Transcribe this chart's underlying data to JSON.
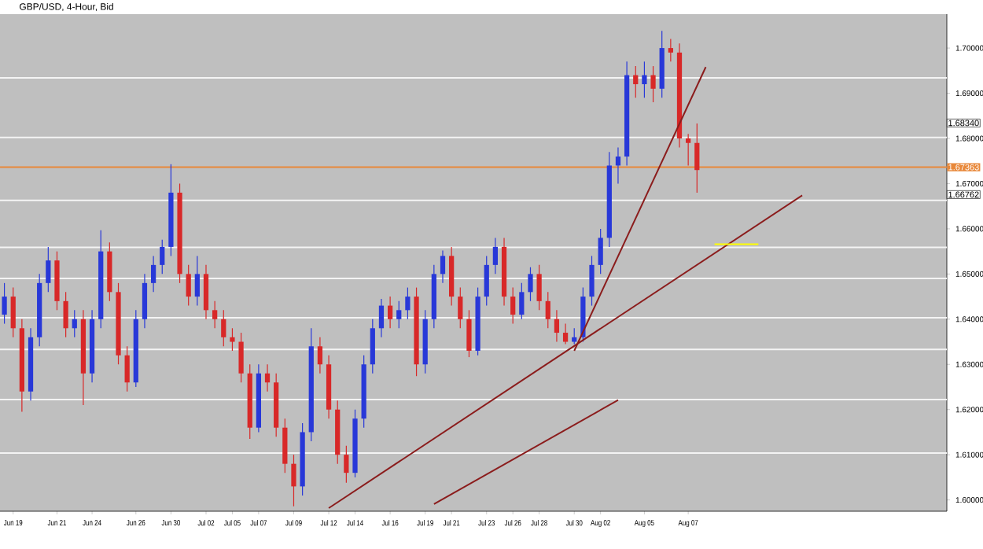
{
  "chart_data": {
    "type": "candlestick",
    "title": "GBP/USD, 4-Hour, Bid",
    "categories": [
      null,
      "Jun 19",
      null,
      null,
      null,
      null,
      "Jun 21",
      null,
      null,
      null,
      "Jun 24",
      null,
      null,
      null,
      null,
      "Jun 26",
      null,
      null,
      null,
      "Jun 30",
      null,
      null,
      null,
      "Jul 02",
      null,
      null,
      "Jul 05",
      null,
      null,
      "Jul 07",
      null,
      null,
      null,
      "Jul 09",
      null,
      null,
      null,
      "Jul 12",
      null,
      null,
      "Jul 14",
      null,
      null,
      null,
      "Jul 16",
      null,
      null,
      null,
      "Jul 19",
      null,
      null,
      "Jul 21",
      null,
      null,
      null,
      "Jul 23",
      null,
      null,
      "Jul 26",
      null,
      null,
      "Jul 28",
      null,
      null,
      null,
      "Jul 30",
      null,
      null,
      "Aug 02",
      null,
      null,
      null,
      null,
      "Aug 05",
      null,
      null,
      null,
      null,
      "Aug 07",
      null,
      null,
      null,
      null,
      null,
      null,
      null,
      null,
      null,
      null,
      null,
      null,
      null,
      null,
      null,
      null,
      null,
      null,
      null,
      null,
      null,
      null,
      null,
      null,
      null,
      null,
      null,
      null,
      null
    ],
    "ylim": [
      1.5975,
      1.7075
    ],
    "yticks": [
      {
        "value": 1.6,
        "label": "1.60000"
      },
      {
        "value": 1.61,
        "label": "1.61000"
      },
      {
        "value": 1.62,
        "label": "1.62000"
      },
      {
        "value": 1.63,
        "label": "1.63000"
      },
      {
        "value": 1.64,
        "label": "1.64000"
      },
      {
        "value": 1.65,
        "label": "1.65000"
      },
      {
        "value": 1.66,
        "label": "1.66000"
      },
      {
        "value": 1.67,
        "label": "1.67000"
      },
      {
        "value": 1.68,
        "label": "1.68000"
      },
      {
        "value": 1.69,
        "label": "1.69000"
      },
      {
        "value": 1.7,
        "label": "1.70000"
      }
    ],
    "series": [
      {
        "ohlc": [
          [
            1.641,
            1.648,
            1.639,
            1.645
          ],
          [
            1.645,
            1.647,
            1.636,
            1.638
          ],
          [
            1.638,
            1.64,
            1.6195,
            1.624
          ],
          [
            1.624,
            1.638,
            1.622,
            1.636
          ],
          [
            1.636,
            1.65,
            1.634,
            1.648
          ],
          [
            1.648,
            1.656,
            1.646,
            1.653
          ],
          [
            1.653,
            1.655,
            1.642,
            1.644
          ],
          [
            1.644,
            1.646,
            1.636,
            1.638
          ],
          [
            1.638,
            1.642,
            1.636,
            1.64
          ],
          [
            1.64,
            1.642,
            1.621,
            1.628
          ],
          [
            1.628,
            1.642,
            1.626,
            1.64
          ],
          [
            1.64,
            1.6597,
            1.638,
            1.655
          ],
          [
            1.655,
            1.657,
            1.644,
            1.646
          ],
          [
            1.646,
            1.648,
            1.63,
            1.632
          ],
          [
            1.632,
            1.634,
            1.624,
            1.626
          ],
          [
            1.626,
            1.642,
            1.625,
            1.64
          ],
          [
            1.64,
            1.65,
            1.638,
            1.648
          ],
          [
            1.648,
            1.654,
            1.646,
            1.652
          ],
          [
            1.652,
            1.6576,
            1.65,
            1.656
          ],
          [
            1.656,
            1.6743,
            1.654,
            1.668
          ],
          [
            1.668,
            1.67,
            1.648,
            1.65
          ],
          [
            1.65,
            1.652,
            1.643,
            1.645
          ],
          [
            1.645,
            1.654,
            1.643,
            1.65
          ],
          [
            1.65,
            1.652,
            1.64,
            1.642
          ],
          [
            1.642,
            1.644,
            1.638,
            1.64
          ],
          [
            1.64,
            1.642,
            1.634,
            1.636
          ],
          [
            1.636,
            1.638,
            1.633,
            1.635
          ],
          [
            1.635,
            1.637,
            1.626,
            1.628
          ],
          [
            1.628,
            1.63,
            1.6135,
            1.616
          ],
          [
            1.616,
            1.63,
            1.615,
            1.628
          ],
          [
            1.628,
            1.63,
            1.624,
            1.626
          ],
          [
            1.626,
            1.628,
            1.614,
            1.616
          ],
          [
            1.616,
            1.618,
            1.606,
            1.608
          ],
          [
            1.608,
            1.61,
            1.5986,
            1.603
          ],
          [
            1.603,
            1.617,
            1.601,
            1.615
          ],
          [
            1.615,
            1.638,
            1.613,
            1.634
          ],
          [
            1.634,
            1.636,
            1.628,
            1.63
          ],
          [
            1.63,
            1.632,
            1.618,
            1.62
          ],
          [
            1.62,
            1.622,
            1.608,
            1.61
          ],
          [
            1.61,
            1.612,
            1.6038,
            1.606
          ],
          [
            1.606,
            1.62,
            1.605,
            1.618
          ],
          [
            1.618,
            1.632,
            1.616,
            1.63
          ],
          [
            1.63,
            1.64,
            1.628,
            1.638
          ],
          [
            1.638,
            1.6445,
            1.636,
            1.643
          ],
          [
            1.643,
            1.645,
            1.638,
            1.64
          ],
          [
            1.64,
            1.644,
            1.638,
            1.642
          ],
          [
            1.642,
            1.647,
            1.64,
            1.645
          ],
          [
            1.645,
            1.647,
            1.6274,
            1.63
          ],
          [
            1.63,
            1.642,
            1.628,
            1.64
          ],
          [
            1.64,
            1.652,
            1.638,
            1.65
          ],
          [
            1.65,
            1.6552,
            1.648,
            1.654
          ],
          [
            1.654,
            1.656,
            1.643,
            1.645
          ],
          [
            1.645,
            1.647,
            1.638,
            1.64
          ],
          [
            1.64,
            1.642,
            1.6316,
            1.633
          ],
          [
            1.633,
            1.647,
            1.632,
            1.645
          ],
          [
            1.645,
            1.654,
            1.643,
            1.652
          ],
          [
            1.652,
            1.658,
            1.65,
            1.656
          ],
          [
            1.656,
            1.658,
            1.643,
            1.645
          ],
          [
            1.645,
            1.647,
            1.639,
            1.641
          ],
          [
            1.641,
            1.648,
            1.64,
            1.646
          ],
          [
            1.646,
            1.6515,
            1.644,
            1.65
          ],
          [
            1.65,
            1.652,
            1.642,
            1.644
          ],
          [
            1.644,
            1.646,
            1.638,
            1.64
          ],
          [
            1.64,
            1.642,
            1.635,
            1.637
          ],
          [
            1.637,
            1.639,
            1.6345,
            1.635
          ],
          [
            1.635,
            1.638,
            1.6345,
            1.636
          ],
          [
            1.636,
            1.647,
            1.635,
            1.645
          ],
          [
            1.645,
            1.654,
            1.643,
            1.652
          ],
          [
            1.652,
            1.66,
            1.65,
            1.658
          ],
          [
            1.658,
            1.677,
            1.656,
            1.674
          ],
          [
            1.674,
            1.678,
            1.67,
            1.676
          ],
          [
            1.676,
            1.697,
            1.674,
            1.694
          ],
          [
            1.694,
            1.696,
            1.689,
            1.692
          ],
          [
            1.692,
            1.697,
            1.689,
            1.694
          ],
          [
            1.694,
            1.696,
            1.688,
            1.691
          ],
          [
            1.691,
            1.7038,
            1.689,
            1.7
          ],
          [
            1.7,
            1.702,
            1.697,
            1.699
          ],
          [
            1.699,
            1.701,
            1.678,
            1.68
          ],
          [
            1.68,
            1.681,
            1.674,
            1.679
          ],
          [
            1.679,
            1.6833,
            1.668,
            1.673
          ],
          null,
          null,
          null,
          null,
          null,
          null,
          null,
          null,
          null,
          null,
          null,
          null,
          null,
          null,
          null,
          null,
          null,
          null,
          null,
          null,
          null,
          null,
          null,
          null,
          null,
          null,
          null,
          null
        ],
        "colors": [
          "#2838d8",
          "#d82828",
          "#d82828",
          "#2838d8",
          "#2838d8",
          "#2838d8",
          "#d82828",
          "#d82828",
          "#2838d8",
          "#d82828",
          "#2838d8",
          "#2838d8",
          "#d82828",
          "#d82828",
          "#d82828",
          "#2838d8",
          "#2838d8",
          "#2838d8",
          "#2838d8",
          "#2838d8",
          "#d82828",
          "#d82828",
          "#2838d8",
          "#d82828",
          "#d82828",
          "#d82828",
          "#d82828",
          "#d82828",
          "#d82828",
          "#2838d8",
          "#d82828",
          "#d82828",
          "#d82828",
          "#d82828",
          "#2838d8",
          "#2838d8",
          "#d82828",
          "#d82828",
          "#d82828",
          "#d82828",
          "#2838d8",
          "#2838d8",
          "#2838d8",
          "#2838d8",
          "#d82828",
          "#2838d8",
          "#2838d8",
          "#d82828",
          "#2838d8",
          "#2838d8",
          "#2838d8",
          "#d82828",
          "#d82828",
          "#d82828",
          "#2838d8",
          "#2838d8",
          "#2838d8",
          "#d82828",
          "#d82828",
          "#2838d8",
          "#2838d8",
          "#d82828",
          "#d82828",
          "#d82828",
          "#d82828",
          "#2838d8",
          "#2838d8",
          "#2838d8",
          "#2838d8",
          "#2838d8",
          "#2838d8",
          "#2838d8",
          "#d82828",
          "#2838d8",
          "#d82828",
          "#2838d8",
          "#d82828",
          "#d82828",
          "#d82828",
          "#d82828",
          null,
          null,
          null,
          null,
          null,
          null,
          null,
          null,
          null,
          null,
          null,
          null,
          null,
          null,
          null,
          null,
          null,
          null,
          null,
          null,
          null,
          null,
          null,
          null,
          null,
          null,
          null,
          null
        ]
      },
      {
        "type": "line",
        "color": "#8b1c1c",
        "values": [
          null,
          null,
          null,
          null,
          null,
          null,
          null,
          null,
          null,
          null,
          null,
          null,
          null,
          null,
          null,
          null,
          null,
          null,
          null,
          null,
          null,
          null,
          null,
          null,
          null,
          null,
          null,
          null,
          null,
          null,
          null,
          null,
          null,
          null,
          null,
          null,
          null,
          null,
          null,
          null,
          null,
          null,
          null,
          null,
          null,
          null,
          null,
          null,
          null,
          null,
          null,
          null,
          null,
          null,
          null,
          null,
          null,
          null,
          null,
          null,
          null,
          null,
          null,
          null,
          null,
          1.633,
          null,
          null,
          null,
          null,
          null,
          null,
          null,
          null,
          null,
          null,
          null,
          null,
          null,
          null,
          1.6958,
          null,
          null,
          null,
          null,
          null,
          null,
          null,
          null,
          null,
          null,
          null,
          null,
          null,
          null,
          null,
          null,
          null,
          null,
          null,
          null,
          null,
          null,
          null,
          null,
          null,
          null,
          null
        ]
      },
      {
        "type": "line",
        "color": "#8b1c1c",
        "values": [
          null,
          null,
          null,
          null,
          null,
          null,
          null,
          null,
          null,
          null,
          null,
          null,
          null,
          null,
          null,
          null,
          null,
          null,
          null,
          null,
          null,
          null,
          null,
          null,
          null,
          null,
          null,
          null,
          null,
          null,
          null,
          null,
          null,
          null,
          null,
          null,
          null,
          1.5982,
          null,
          null,
          null,
          null,
          null,
          null,
          null,
          null,
          null,
          null,
          null,
          null,
          null,
          null,
          null,
          null,
          null,
          null,
          null,
          null,
          null,
          null,
          null,
          null,
          null,
          null,
          null,
          null,
          null,
          null,
          null,
          null,
          null,
          null,
          null,
          null,
          null,
          null,
          null,
          null,
          null,
          null,
          null,
          null,
          null,
          null,
          null,
          null,
          null,
          null,
          null,
          null,
          null,
          1.6674,
          null,
          null,
          null,
          null,
          null,
          null,
          null,
          null,
          null,
          null,
          null,
          null,
          null,
          null,
          null,
          null
        ]
      },
      {
        "type": "line",
        "color": "#8b1c1c",
        "values": [
          null,
          null,
          null,
          null,
          null,
          null,
          null,
          null,
          null,
          null,
          null,
          null,
          null,
          null,
          null,
          null,
          null,
          null,
          null,
          null,
          null,
          null,
          null,
          null,
          null,
          null,
          null,
          null,
          null,
          null,
          null,
          null,
          null,
          null,
          null,
          null,
          null,
          null,
          null,
          null,
          null,
          null,
          null,
          null,
          null,
          null,
          null,
          null,
          null,
          1.5991,
          null,
          null,
          null,
          null,
          null,
          null,
          null,
          null,
          null,
          null,
          null,
          null,
          null,
          null,
          null,
          null,
          null,
          null,
          null,
          null,
          1.6221,
          null,
          null,
          null,
          null,
          null,
          null,
          null,
          null,
          null,
          null,
          null,
          null,
          null,
          null,
          null,
          null,
          null,
          null,
          null,
          null,
          null,
          null,
          null,
          null,
          null,
          null,
          null,
          null,
          null,
          null,
          null,
          null,
          null,
          null,
          null,
          null,
          null
        ]
      },
      {
        "type": "line",
        "color": "#ffff00",
        "values": [
          null,
          null,
          null,
          null,
          null,
          null,
          null,
          null,
          null,
          null,
          null,
          null,
          null,
          null,
          null,
          null,
          null,
          null,
          null,
          null,
          null,
          null,
          null,
          null,
          null,
          null,
          null,
          null,
          null,
          null,
          null,
          null,
          null,
          null,
          null,
          null,
          null,
          null,
          null,
          null,
          null,
          null,
          null,
          null,
          null,
          null,
          null,
          null,
          null,
          null,
          null,
          null,
          null,
          null,
          null,
          null,
          null,
          null,
          null,
          null,
          null,
          null,
          null,
          null,
          null,
          null,
          null,
          null,
          null,
          null,
          null,
          null,
          null,
          null,
          null,
          null,
          null,
          null,
          null,
          null,
          null,
          1.6566,
          null,
          null,
          null,
          null,
          1.6566,
          null,
          null,
          null,
          null,
          null,
          null,
          null,
          null,
          null,
          null,
          null,
          null,
          null,
          null,
          null,
          null,
          null,
          null,
          null,
          null,
          null
        ]
      }
    ],
    "ref_lines": [
      {
        "axis": "y",
        "value": 1.6934,
        "color": "#f4f4f4"
      },
      {
        "axis": "y",
        "value": 1.6802,
        "color": "#f4f4f4"
      },
      {
        "axis": "y",
        "value": 1.6663,
        "color": "#f4f4f4"
      },
      {
        "axis": "y",
        "value": 1.6559,
        "color": "#f4f4f4"
      },
      {
        "axis": "y",
        "value": 1.649,
        "color": "#f4f4f4"
      },
      {
        "axis": "y",
        "value": 1.6403,
        "color": "#f4f4f4"
      },
      {
        "axis": "y",
        "value": 1.6333,
        "color": "#f4f4f4"
      },
      {
        "axis": "y",
        "value": 1.6222,
        "color": "#f4f4f4"
      },
      {
        "axis": "y",
        "value": 1.6104,
        "color": "#f4f4f4"
      },
      {
        "axis": "y",
        "value": 1.67363,
        "label": "1.67363",
        "color": "#e8883a"
      }
    ],
    "annotations": [
      "1.68340",
      "1.66762"
    ]
  }
}
